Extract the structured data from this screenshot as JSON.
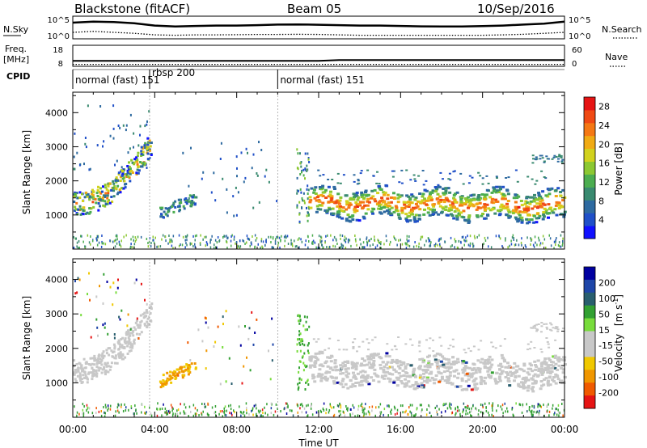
{
  "header": {
    "station": "Blackstone (fitACF)",
    "beam": "Beam 05",
    "date": "10/Sep/2016"
  },
  "chart_data": [
    {
      "type": "line",
      "panel": "noise",
      "left_label": "N.Sky",
      "right_label": "N.Search",
      "left_ticks": [
        "10^5",
        "10^0"
      ],
      "right_ticks": [
        "10^5",
        "10^0"
      ],
      "note": "solid line = N.Sky, dotted = N.Search (log scale)",
      "sky_profile": [
        0.75,
        0.8,
        0.78,
        0.72,
        0.6,
        0.55,
        0.58,
        0.6,
        0.6,
        0.62,
        0.65,
        0.66,
        0.64,
        0.62,
        0.6,
        0.6,
        0.58,
        0.56,
        0.55,
        0.55,
        0.57,
        0.6,
        0.65,
        0.7,
        0.8
      ],
      "search_profile": [
        0.25,
        0.3,
        0.25,
        0.2,
        0.12,
        0.1,
        0.12,
        0.12,
        0.13,
        0.14,
        0.14,
        0.15,
        0.14,
        0.12,
        0.1,
        0.1,
        0.1,
        0.1,
        0.1,
        0.1,
        0.1,
        0.12,
        0.15,
        0.2,
        0.25
      ]
    },
    {
      "type": "line",
      "panel": "frequency",
      "left_label_1": "Freq.",
      "left_label_2": "[MHz]",
      "right_label": "Nave",
      "left_ticks": [
        "18",
        "8"
      ],
      "right_ticks": [
        "60",
        "0"
      ],
      "freq_mhz": [
        10.2,
        10.2,
        10.2,
        10.2,
        10.2,
        10.2,
        10.2,
        10.2,
        10.2,
        10.2,
        10.2,
        10.2,
        10.2,
        10.6,
        10.6,
        10.6,
        10.6,
        10.6,
        10.6,
        10.6,
        10.6,
        10.6,
        10.6,
        10.6,
        10.6
      ],
      "nave": [
        1,
        1,
        1,
        1,
        1,
        1,
        1,
        1,
        1,
        1,
        1,
        1,
        1,
        1,
        1,
        1,
        1,
        1,
        1,
        1,
        1,
        1,
        1,
        1,
        1
      ]
    },
    {
      "type": "table",
      "panel": "cpid",
      "label": "CPID",
      "segments": [
        {
          "start_h": 0.0,
          "end_h": 3.75,
          "text": "normal (fast) 151"
        },
        {
          "start_h": 3.75,
          "end_h": 10.0,
          "text": "rbsp 200"
        },
        {
          "start_h": 10.0,
          "end_h": 24.0,
          "text": "normal (fast) 151"
        }
      ]
    },
    {
      "type": "heatmap",
      "panel": "power",
      "ylabel": "Slant Range [km]",
      "colorbar_label": "Power [dB]",
      "colorbar_ticks": [
        "4",
        "8",
        "12",
        "16",
        "20",
        "24",
        "28"
      ],
      "colorbar_colors": [
        "#1010ff",
        "#2050c8",
        "#2e6aa0",
        "#3a8a70",
        "#4cad50",
        "#8cc832",
        "#d2d21e",
        "#f0aa14",
        "#f57814",
        "#f04a14",
        "#e61414"
      ],
      "yticks": [
        1000,
        2000,
        3000,
        4000
      ],
      "ylim": [
        0,
        4600
      ],
      "xlim_hours": [
        0,
        24
      ]
    },
    {
      "type": "heatmap",
      "panel": "velocity",
      "ylabel": "Slant Range [km]",
      "xlabel": "Time UT",
      "colorbar_label": "Velocity",
      "colorbar_label_unit": "[m s",
      "colorbar_label_exp": "-1",
      "colorbar_label_close": "]",
      "colorbar_ticks": [
        "200",
        "100",
        "50",
        "15",
        "-15",
        "-50",
        "-100",
        "-200"
      ],
      "colorbar_colors": [
        "#0000a0",
        "#1e46a8",
        "#285e6e",
        "#32a032",
        "#78dc3c",
        "#c8c8c8",
        "#c8c8c8",
        "#f0c800",
        "#f09600",
        "#f05a00",
        "#e61414"
      ],
      "yticks": [
        1000,
        2000,
        3000,
        4000
      ],
      "xticks": [
        "00:00",
        "04:00",
        "08:00",
        "12:00",
        "16:00",
        "20:00",
        "00:00"
      ],
      "ylim": [
        0,
        4600
      ],
      "xlim_hours": [
        0,
        24
      ]
    }
  ]
}
